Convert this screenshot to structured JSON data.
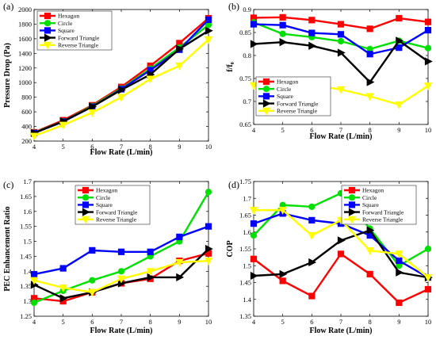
{
  "chart_data": [
    {
      "type": "line",
      "panel_label": "(a)",
      "xlabel": "Flow Rate (L/min)",
      "ylabel": "Pressure Drop (Pa)",
      "x": [
        4,
        5,
        6,
        7,
        8,
        9,
        10
      ],
      "xlim": [
        4,
        10
      ],
      "xticks": [
        "4",
        "5",
        "6",
        "7",
        "8",
        "9",
        "10"
      ],
      "ylim": [
        200,
        2000
      ],
      "yticks": [
        "200",
        "400",
        "600",
        "800",
        "1000",
        "1200",
        "1400",
        "1600",
        "1800",
        "2000"
      ],
      "legend": "top-left",
      "series": [
        {
          "name": "Hexagon",
          "color": "#ff0000",
          "marker": "square",
          "values": [
            320,
            485,
            690,
            940,
            1230,
            1540,
            1880
          ]
        },
        {
          "name": "Circle",
          "color": "#00e000",
          "marker": "circle",
          "values": [
            315,
            470,
            680,
            920,
            1190,
            1480,
            1790
          ]
        },
        {
          "name": "Square",
          "color": "#0000ff",
          "marker": "square",
          "values": [
            310,
            465,
            670,
            910,
            1170,
            1450,
            1860
          ]
        },
        {
          "name": "Forward Triangle",
          "color": "#000000",
          "marker": "tri-right",
          "values": [
            310,
            470,
            670,
            900,
            1110,
            1460,
            1710
          ]
        },
        {
          "name": "Reverse Triangle",
          "color": "#ffff00",
          "marker": "tri-down",
          "values": [
            270,
            420,
            590,
            800,
            1050,
            1230,
            1590
          ]
        }
      ]
    },
    {
      "type": "line",
      "panel_label": "(b)",
      "xlabel": "Flow Rate (L/min)",
      "ylabel": "f/f₀",
      "x": [
        4,
        5,
        6,
        7,
        8,
        9,
        10
      ],
      "xlim": [
        4,
        10
      ],
      "xticks": [
        "4",
        "5",
        "6",
        "7",
        "8",
        "9",
        "10"
      ],
      "ylim": [
        0.65,
        0.9
      ],
      "yticks": [
        "0.65",
        "0.7",
        "0.75",
        "0.8",
        "0.85",
        "0.9"
      ],
      "legend": "lower-left",
      "series": [
        {
          "name": "Hexagon",
          "color": "#ff0000",
          "marker": "square",
          "values": [
            0.882,
            0.883,
            0.877,
            0.868,
            0.858,
            0.881,
            0.873
          ]
        },
        {
          "name": "Circle",
          "color": "#00e000",
          "marker": "circle",
          "values": [
            0.872,
            0.847,
            0.84,
            0.831,
            0.814,
            0.832,
            0.816
          ]
        },
        {
          "name": "Square",
          "color": "#0000ff",
          "marker": "square",
          "values": [
            0.868,
            0.866,
            0.849,
            0.846,
            0.803,
            0.817,
            0.855
          ]
        },
        {
          "name": "Forward Triangle",
          "color": "#000000",
          "marker": "tri-right",
          "values": [
            0.825,
            0.829,
            0.821,
            0.806,
            0.742,
            0.832,
            0.787
          ]
        },
        {
          "name": "Reverse Triangle",
          "color": "#ffff00",
          "marker": "tri-down",
          "values": [
            0.735,
            0.739,
            0.736,
            0.726,
            0.711,
            0.693,
            0.734
          ]
        }
      ]
    },
    {
      "type": "line",
      "panel_label": "(c)",
      "xlabel": "Flow Rate (L/min)",
      "ylabel": "PEC Enhancement Ratio",
      "x": [
        4,
        5,
        6,
        7,
        8,
        9,
        10
      ],
      "xlim": [
        4,
        10
      ],
      "xticks": [
        "4",
        "5",
        "6",
        "7",
        "8",
        "9",
        "10"
      ],
      "ylim": [
        1.25,
        1.7
      ],
      "yticks": [
        "1.25",
        "1.3",
        "1.35",
        "1.4",
        "1.45",
        "1.5",
        "1.55",
        "1.6",
        "1.65",
        "1.7"
      ],
      "legend": "top-center",
      "series": [
        {
          "name": "Hexagon",
          "color": "#ff0000",
          "marker": "square",
          "values": [
            1.31,
            1.3,
            1.33,
            1.36,
            1.375,
            1.435,
            1.46
          ]
        },
        {
          "name": "Circle",
          "color": "#00e000",
          "marker": "circle",
          "values": [
            1.295,
            1.335,
            1.37,
            1.4,
            1.45,
            1.5,
            1.665
          ]
        },
        {
          "name": "Square",
          "color": "#0000ff",
          "marker": "square",
          "values": [
            1.39,
            1.41,
            1.47,
            1.465,
            1.465,
            1.515,
            1.55
          ]
        },
        {
          "name": "Forward Triangle",
          "color": "#000000",
          "marker": "tri-right",
          "values": [
            1.355,
            1.31,
            1.33,
            1.36,
            1.38,
            1.38,
            1.475
          ]
        },
        {
          "name": "Reverse Triangle",
          "color": "#ffff00",
          "marker": "tri-down",
          "values": [
            1.37,
            1.345,
            1.33,
            1.375,
            1.4,
            1.43,
            1.435
          ]
        }
      ]
    },
    {
      "type": "line",
      "panel_label": "(d)",
      "xlabel": "Flow Rate (L/min)",
      "ylabel": "COP",
      "x": [
        4,
        5,
        6,
        7,
        8,
        9,
        10
      ],
      "xlim": [
        4,
        10
      ],
      "xticks": [
        "4",
        "5",
        "6",
        "7",
        "8",
        "9",
        "10"
      ],
      "ylim": [
        1.35,
        1.75
      ],
      "yticks": [
        "1.35",
        "1.4",
        "1.45",
        "1.5",
        "1.55",
        "1.6",
        "1.65",
        "1.7",
        "1.75"
      ],
      "legend": "top-right",
      "series": [
        {
          "name": "Hexagon",
          "color": "#ff0000",
          "marker": "square",
          "values": [
            1.52,
            1.455,
            1.41,
            1.535,
            1.475,
            1.39,
            1.43
          ]
        },
        {
          "name": "Circle",
          "color": "#00e000",
          "marker": "circle",
          "values": [
            1.59,
            1.68,
            1.675,
            1.715,
            1.61,
            1.5,
            1.55
          ]
        },
        {
          "name": "Square",
          "color": "#0000ff",
          "marker": "square",
          "values": [
            1.625,
            1.655,
            1.635,
            1.625,
            1.59,
            1.515,
            1.465
          ]
        },
        {
          "name": "Forward Triangle",
          "color": "#000000",
          "marker": "tri-right",
          "values": [
            1.47,
            1.475,
            1.51,
            1.575,
            1.605,
            1.48,
            1.465
          ]
        },
        {
          "name": "Reverse Triangle",
          "color": "#ffff00",
          "marker": "tri-down",
          "values": [
            1.665,
            1.665,
            1.59,
            1.635,
            1.545,
            1.535,
            1.465
          ]
        }
      ]
    }
  ]
}
